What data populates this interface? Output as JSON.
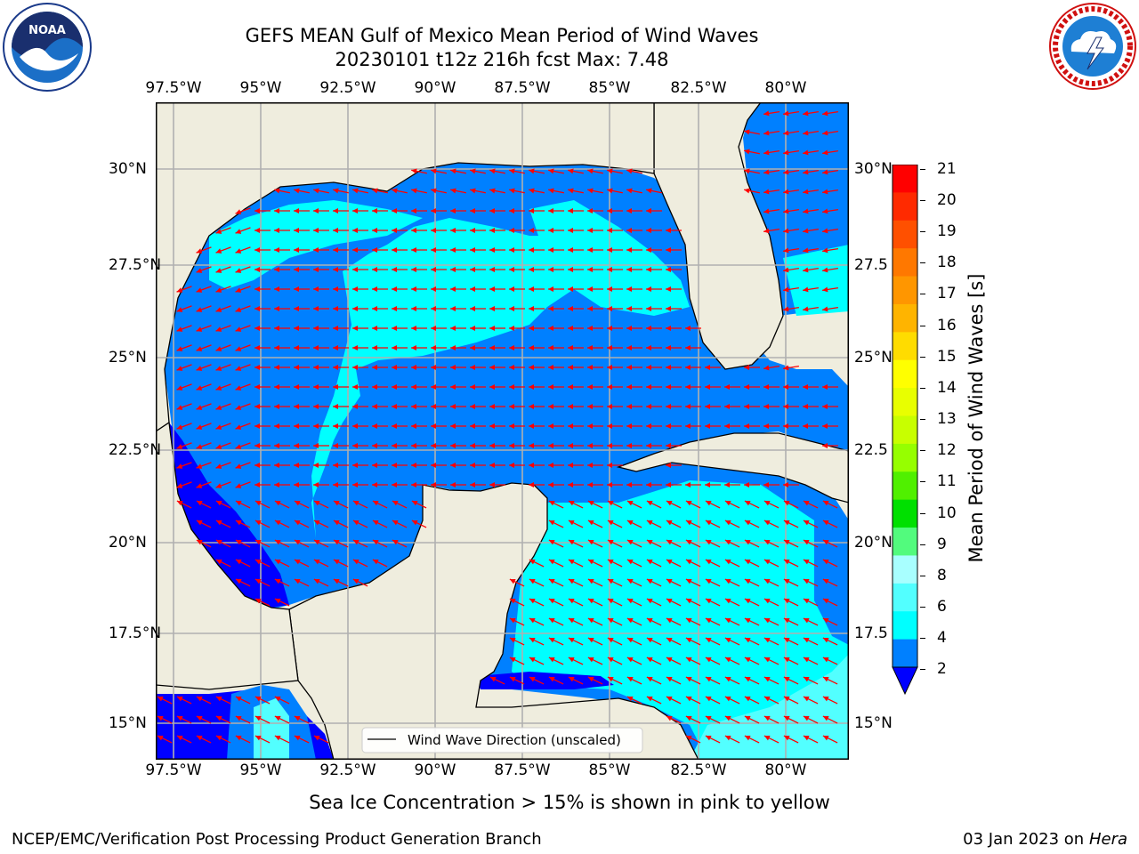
{
  "header": {
    "title_line1": "GEFS MEAN Gulf of Mexico Mean Period of Wind Waves",
    "title_line2": "20230101 t12z 216h fcst   Max: 7.48"
  },
  "logos": {
    "noaa": {
      "text": "NOAA",
      "ring_text": "NATIONAL OCEANIC AND ATMOSPHERIC ADMINISTRATION · U.S. DEPARTMENT OF COMMERCE"
    },
    "nws": {
      "ring_text": "NATIONAL WEATHER SERVICE"
    }
  },
  "axes": {
    "lon_ticks": [
      "97.5°W",
      "95°W",
      "92.5°W",
      "90°W",
      "87.5°W",
      "85°W",
      "82.5°W",
      "80°W"
    ],
    "lat_ticks": [
      "30°N",
      "27.5°N",
      "25°N",
      "22.5°N",
      "20°N",
      "17.5°N",
      "15°N"
    ],
    "lat_ticks_right": [
      "30°N",
      "27.5",
      "25°N",
      "22.5",
      "20°N",
      "17.5",
      "15°N"
    ]
  },
  "legend": {
    "label": "Wind Wave Direction (unscaled)"
  },
  "colorbar": {
    "label": "Mean Period of Wind Waves [s]",
    "ticks": [
      "21",
      "20",
      "19",
      "18",
      "17",
      "16",
      "15",
      "14",
      "13",
      "12",
      "11",
      "10",
      "9",
      "8",
      "6",
      "4",
      "2"
    ],
    "colors": [
      "#ff0000",
      "#ff2a00",
      "#ff5000",
      "#ff7800",
      "#ff9600",
      "#ffb400",
      "#ffdc00",
      "#ffff00",
      "#e8ff00",
      "#c8ff00",
      "#96ff00",
      "#50f000",
      "#00e000",
      "#52fb7d",
      "#a8ffff",
      "#52ffff",
      "#00ffff",
      "#0080ff"
    ],
    "extend_color": "#0000ff"
  },
  "colors": {
    "land": "#efedde",
    "wave_2_4": "#0080ff",
    "wave_4_6": "#00ffff",
    "wave_6_8": "#52ffff",
    "wave_lt2": "#0000ff",
    "arrow": "#ff0000"
  },
  "notes": {
    "ice": "Sea Ice Concentration > 15% is shown in pink to yellow"
  },
  "footer": {
    "left": "NCEP/EMC/Verification Post Processing Product Generation Branch",
    "right_date": "03 Jan 2023 on ",
    "right_machine": "Hera"
  }
}
